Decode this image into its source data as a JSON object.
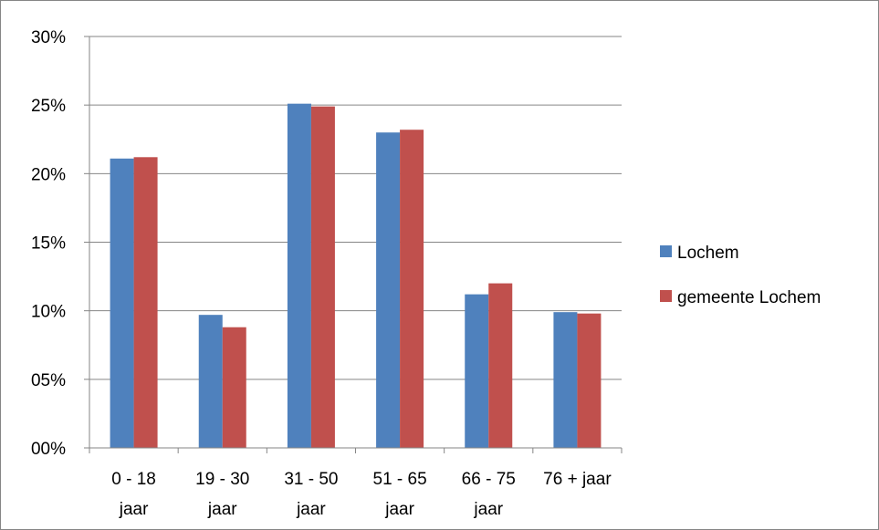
{
  "chart_data": {
    "type": "bar",
    "categories": [
      [
        "0 - 18",
        "jaar"
      ],
      [
        "19 - 30",
        "jaar"
      ],
      [
        "31 - 50",
        "jaar"
      ],
      [
        "51 - 65",
        "jaar"
      ],
      [
        "66 - 75",
        "jaar"
      ],
      [
        "76 + jaar"
      ]
    ],
    "series": [
      {
        "name": "Lochem",
        "color": "#4F81BD",
        "values": [
          21.1,
          9.7,
          25.1,
          23.0,
          11.2,
          9.9
        ]
      },
      {
        "name": "gemeente Lochem",
        "color": "#C0504D",
        "values": [
          21.2,
          8.8,
          24.9,
          23.2,
          12.0,
          9.8
        ]
      }
    ],
    "y_ticks": [
      "00%",
      "05%",
      "10%",
      "15%",
      "20%",
      "25%",
      "30%"
    ],
    "ylim": [
      0,
      30
    ],
    "grid": true,
    "legend_position": "right",
    "title": "",
    "xlabel": "",
    "ylabel": ""
  }
}
